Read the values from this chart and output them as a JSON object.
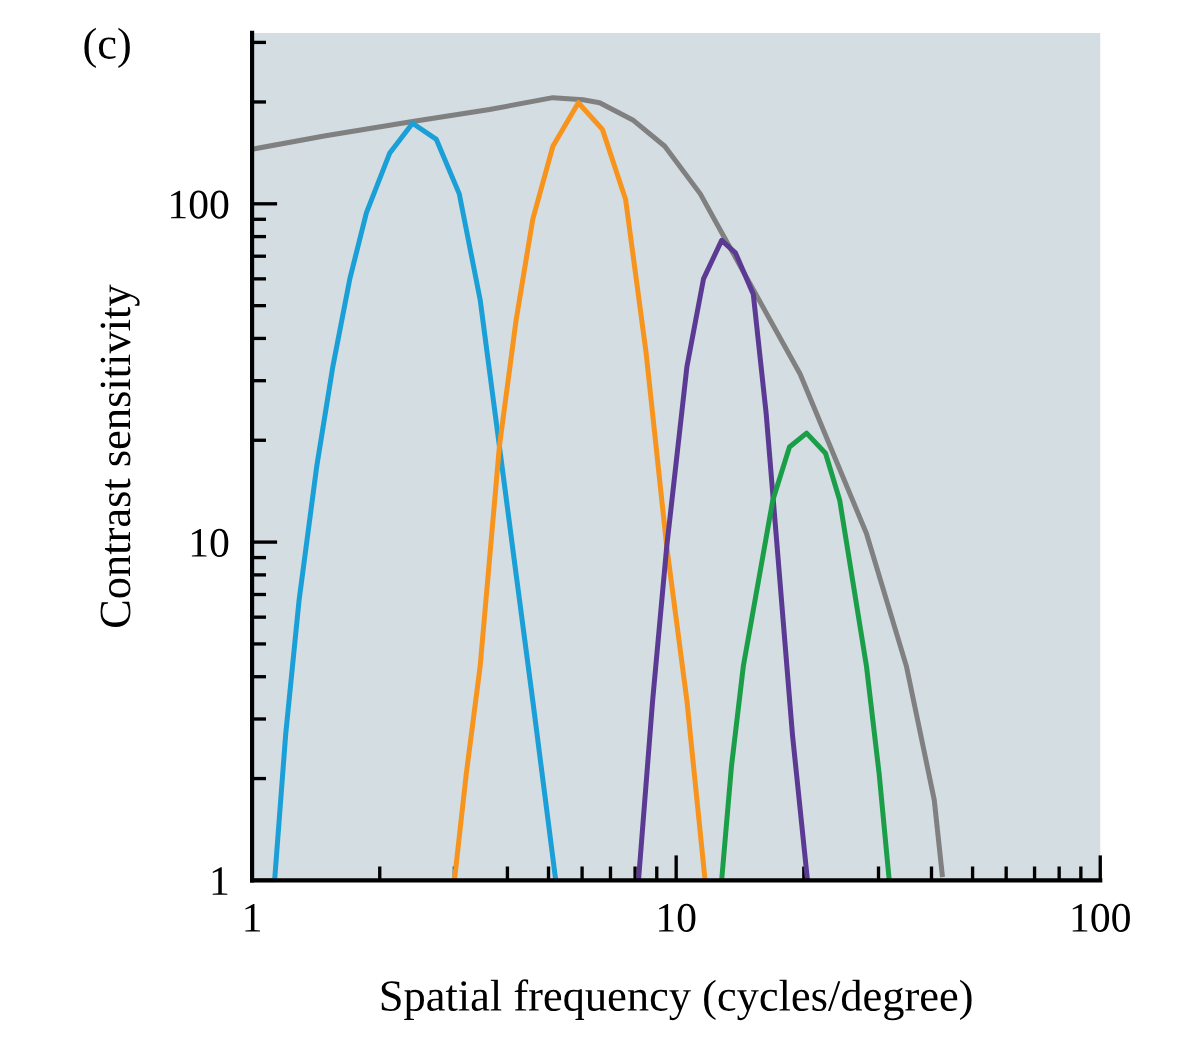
{
  "chart_data": {
    "type": "line",
    "xlabel": "Spatial frequency (cycles/degree)",
    "ylabel": "Contrast sensitivity",
    "annotations": [
      "(c)"
    ],
    "log": "xy",
    "grid": false,
    "legend": false,
    "marker": "none",
    "line_style": "solid",
    "xlim": [
      1,
      100
    ],
    "xticks": [
      1,
      10,
      100
    ],
    "ylim": [
      1,
      320
    ],
    "yticks": [
      1,
      10,
      100
    ],
    "series": [
      {
        "color": "#808080",
        "x": [
          1,
          1.49,
          2.39,
          3.63,
          5.12,
          6.03,
          6.6,
          7.9,
          9.4,
          11.4,
          13.1,
          19.6,
          28.1,
          34.9,
          40.6,
          42.4
        ],
        "values": [
          145,
          159,
          175,
          190,
          206,
          203,
          199,
          177,
          148,
          107,
          78,
          31.4,
          10.6,
          4.3,
          1.73,
          1.04
        ]
      },
      {
        "color": "#1a9fd6",
        "x": [
          1.13,
          1.2,
          1.29,
          1.42,
          1.55,
          1.7,
          1.86,
          2.11,
          2.39,
          2.72,
          3.08,
          3.45,
          3.83,
          4.19,
          4.59,
          5.2
        ],
        "values": [
          1,
          2.7,
          6.7,
          16.7,
          33,
          60,
          94,
          141,
          173,
          155,
          107,
          52,
          19.2,
          8.1,
          3.4,
          1
        ]
      },
      {
        "color": "#f7941d",
        "x": [
          3.0,
          3.2,
          3.45,
          3.83,
          4.19,
          4.59,
          5.12,
          5.88,
          6.7,
          7.6,
          8.5,
          9.5,
          10.6,
          11.7
        ],
        "values": [
          1,
          2.07,
          4.3,
          19.2,
          45,
          90,
          148,
          199,
          166,
          103,
          36,
          9.7,
          3.4,
          1
        ]
      },
      {
        "color": "#5b3a94",
        "x": [
          8.15,
          8.8,
          9.5,
          10.6,
          11.6,
          12.8,
          13.8,
          15.2,
          16.3,
          17.2,
          18.8,
          20.4
        ],
        "values": [
          1,
          3.4,
          9.7,
          33,
          60,
          78,
          71.6,
          54,
          24,
          10.6,
          2.7,
          1
        ]
      },
      {
        "color": "#1a9e48",
        "x": [
          12.8,
          13.5,
          14.4,
          16.9,
          18.5,
          20.3,
          22.5,
          24.3,
          28.1,
          30.1,
          31.8
        ],
        "values": [
          1,
          2.17,
          4.3,
          13.3,
          19.1,
          21,
          18.3,
          13.3,
          4.3,
          2.07,
          1
        ]
      }
    ]
  }
}
